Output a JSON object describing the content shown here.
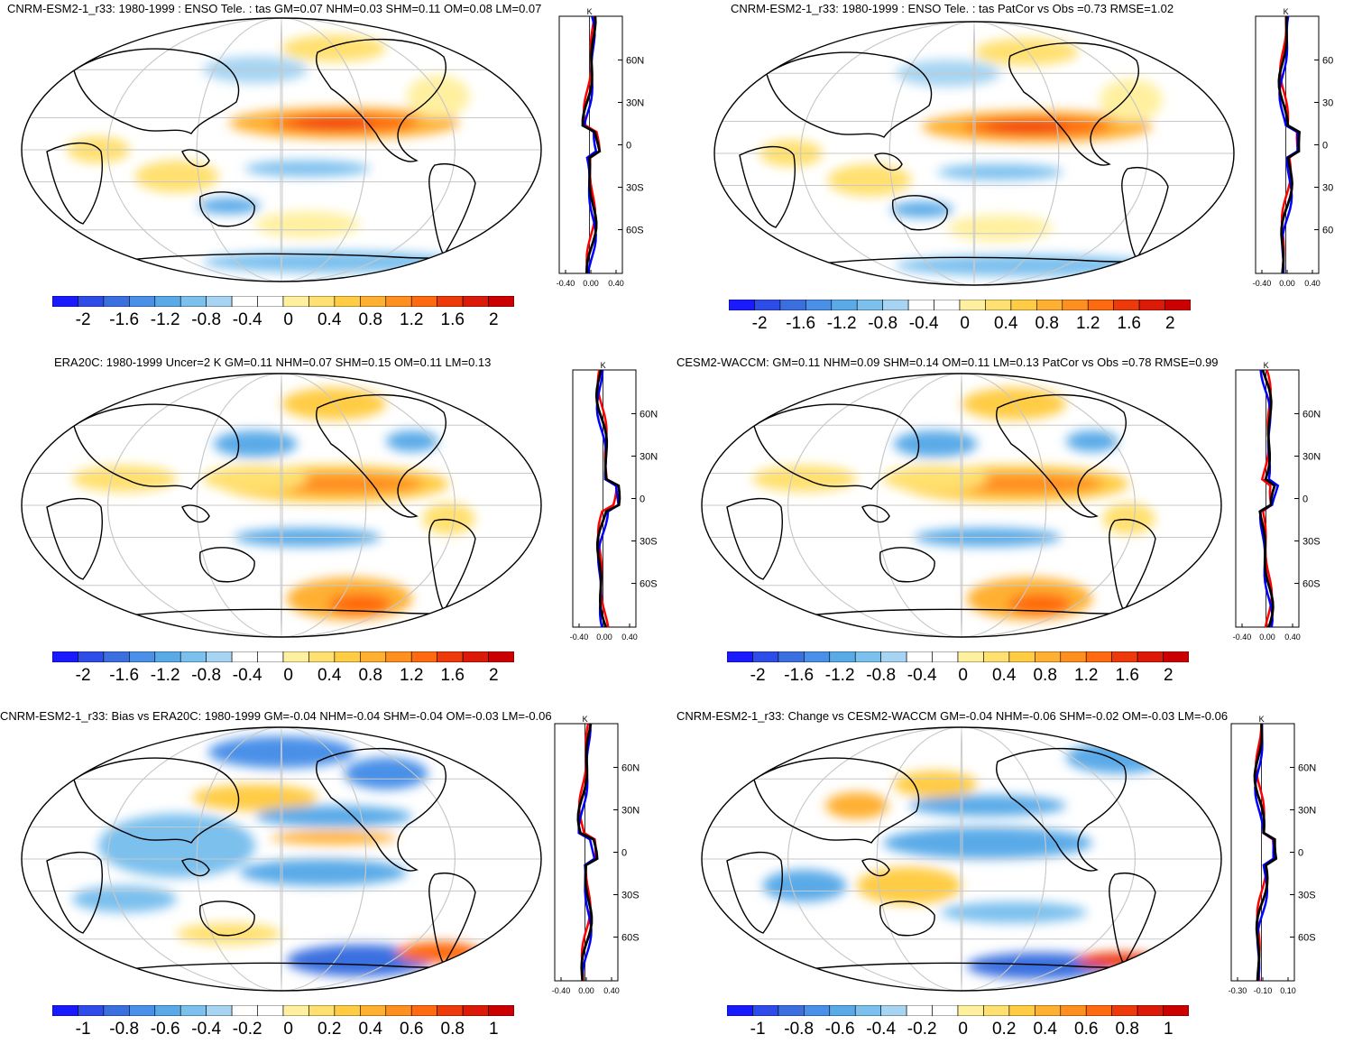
{
  "panels": [
    {
      "title": "CNRM-ESM2-1_r33: 1980-1999 : ENSO Tele. : tas GM=0.07 NHM=0.03 SHM=0.11 OM=0.08 LM=0.07",
      "pattern": "model",
      "colorbar": [
        "-2",
        "-1.6",
        "-1.2",
        "-0.8",
        "-0.4",
        "0",
        "0.4",
        "0.8",
        "1.2",
        "1.6",
        "2"
      ],
      "profile_x_ticks": [
        "-0.40",
        "0.00",
        "0.40"
      ],
      "profile_unit": "K",
      "lat_labels": [
        "60N",
        "30N",
        "0",
        "30S",
        "60S"
      ]
    },
    {
      "title": "CNRM-ESM2-1_r33: 1980-1999 : ENSO Tele. : tas PatCor vs Obs =0.73 RMSE=1.02",
      "pattern": "model",
      "colorbar": [
        "-2",
        "-1.6",
        "-1.2",
        "-0.8",
        "-0.4",
        "0",
        "0.4",
        "0.8",
        "1.2",
        "1.6",
        "2"
      ],
      "profile_x_ticks": [
        "-0.40",
        "0.00",
        "0.40"
      ],
      "profile_unit": "K",
      "lat_labels": [
        "60",
        "30",
        "0",
        "30",
        "60"
      ]
    },
    {
      "title": "ERA20C: 1980-1999 Uncer=2 K GM=0.11 NHM=0.07 SHM=0.15 OM=0.11 LM=0.13",
      "pattern": "obs",
      "colorbar": [
        "-2",
        "-1.6",
        "-1.2",
        "-0.8",
        "-0.4",
        "0",
        "0.4",
        "0.8",
        "1.2",
        "1.6",
        "2"
      ],
      "profile_x_ticks": [
        "-0.40",
        "0.00",
        "0.40"
      ],
      "profile_unit": "K",
      "lat_labels": [
        "60N",
        "30N",
        "0",
        "30S",
        "60S"
      ]
    },
    {
      "title": "CESM2-WACCM: GM=0.11 NHM=0.09 SHM=0.14 OM=0.11 LM=0.13 PatCor vs Obs =0.78 RMSE=0.99",
      "pattern": "obs",
      "colorbar": [
        "-2",
        "-1.6",
        "-1.2",
        "-0.8",
        "-0.4",
        "0",
        "0.4",
        "0.8",
        "1.2",
        "1.6",
        "2"
      ],
      "profile_x_ticks": [
        "-0.40",
        "0.00",
        "0.40"
      ],
      "profile_unit": "K",
      "lat_labels": [
        "60N",
        "30N",
        "0",
        "30S",
        "60S"
      ]
    },
    {
      "title": "CNRM-ESM2-1_r33: Bias vs ERA20C: 1980-1999 GM=-0.04 NHM=-0.04 SHM=-0.04 OM=-0.03 LM=-0.06",
      "pattern": "bias",
      "colorbar": [
        "-1",
        "-0.8",
        "-0.6",
        "-0.4",
        "-0.2",
        "0",
        "0.2",
        "0.4",
        "0.6",
        "0.8",
        "1"
      ],
      "profile_x_ticks": [
        "-0.40",
        "0.00",
        "0.40"
      ],
      "profile_unit": "K",
      "lat_labels": [
        "60N",
        "30N",
        "0",
        "30S",
        "60S"
      ]
    },
    {
      "title": "CNRM-ESM2-1_r33: Change vs CESM2-WACCM GM=-0.04 NHM=-0.06 SHM=-0.02 OM=-0.03 LM=-0.06",
      "pattern": "change",
      "colorbar": [
        "-1",
        "-0.8",
        "-0.6",
        "-0.4",
        "-0.2",
        "0",
        "0.2",
        "0.4",
        "0.6",
        "0.8",
        "1"
      ],
      "profile_x_ticks": [
        "-0.30",
        "-0.10",
        "0.10"
      ],
      "profile_unit": "K",
      "lat_labels": [
        "60N",
        "30N",
        "0",
        "30S",
        "60S"
      ]
    }
  ],
  "colors": {
    "scale": [
      "#1a1aff",
      "#2e4de8",
      "#3b6fe0",
      "#4a90e8",
      "#5aaae8",
      "#7cc0ee",
      "#a6d4f2",
      "#ffffff",
      "#ffffff",
      "#fff0a0",
      "#ffe070",
      "#ffcc44",
      "#ffb030",
      "#ff9020",
      "#ff6a10",
      "#ee3a0a",
      "#dd1a08",
      "#cc0000"
    ],
    "land_outline": "#000000",
    "profile_red": "#ff0000",
    "profile_blue": "#0000ff",
    "profile_black": "#000000"
  }
}
